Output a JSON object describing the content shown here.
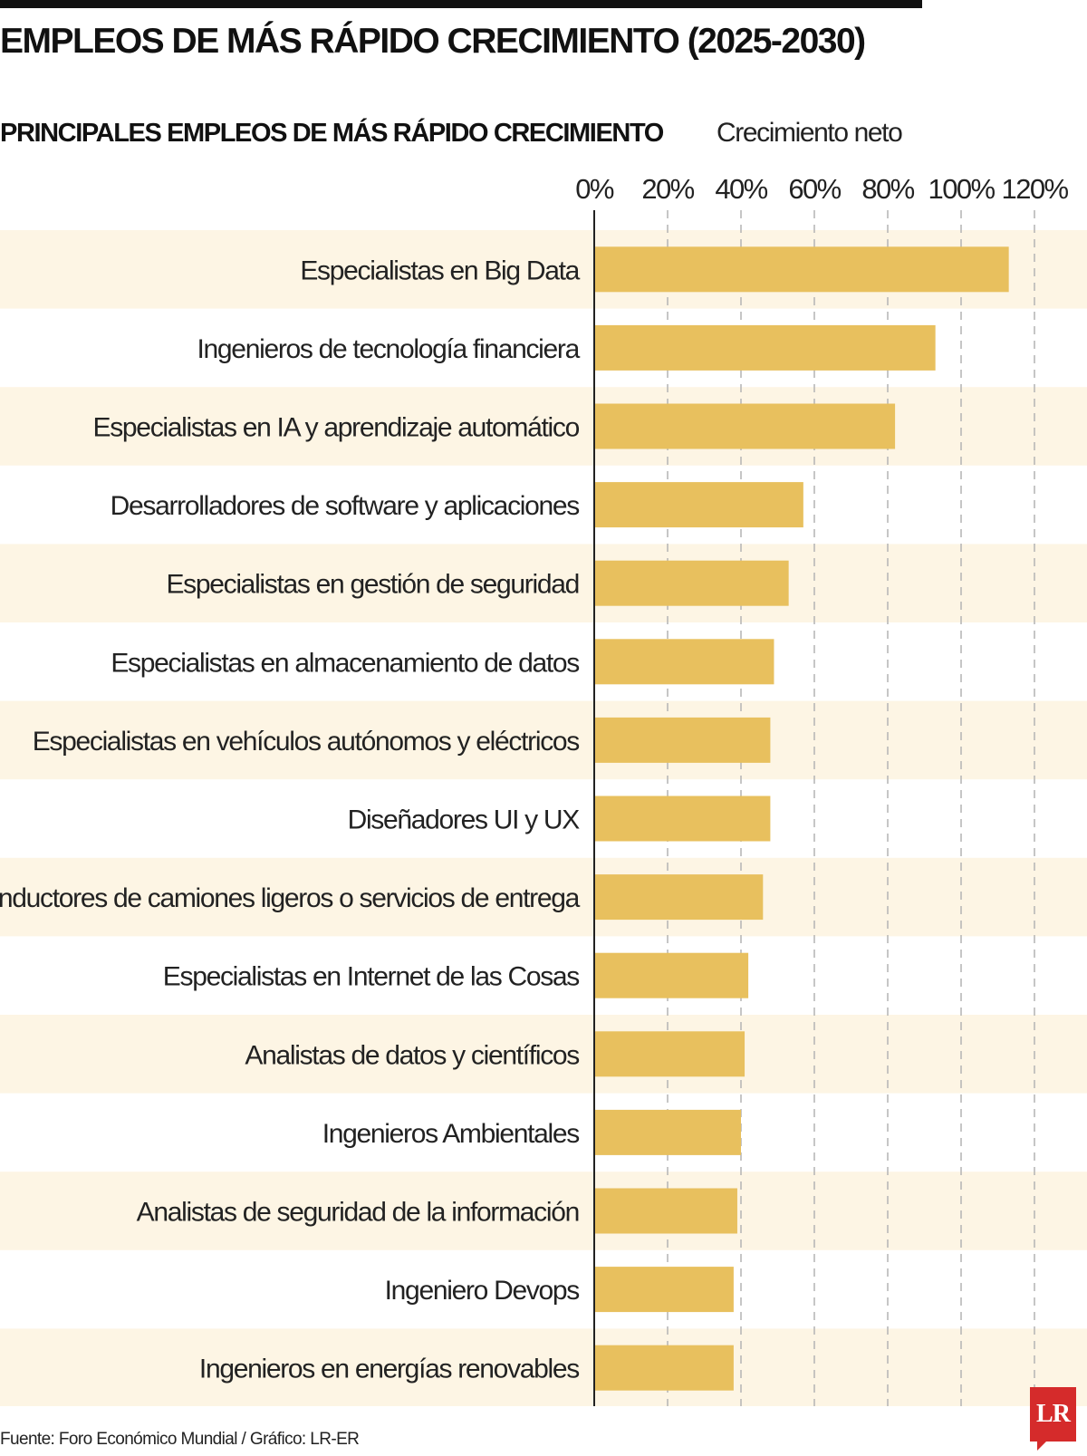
{
  "header": {
    "title": "EMPLEOS DE MÁS RÁPIDO CRECIMIENTO (2025-2030)",
    "subtitle": "PRINCIPALES EMPLEOS DE MÁS RÁPIDO CRECIMIENTO",
    "axis_title": "Crecimiento neto"
  },
  "footer": {
    "source": "Fuente: Foro Económico Mundial / Gráfico: LR-ER",
    "logo_text": "LR"
  },
  "colors": {
    "bar": "#e8c05e",
    "band": "#fdf5e4",
    "title_rule": "#111111",
    "logo": "#d52b2b"
  },
  "chart_data": {
    "type": "bar",
    "orientation": "horizontal",
    "title": "PRINCIPALES EMPLEOS DE MÁS RÁPIDO CRECIMIENTO",
    "xlabel": "Crecimiento neto",
    "ylabel": "",
    "xlim": [
      0,
      120
    ],
    "xticks": [
      0,
      20,
      40,
      60,
      80,
      100,
      120
    ],
    "xtick_labels": [
      "0%",
      "20%",
      "40%",
      "60%",
      "80%",
      "100%",
      "120%"
    ],
    "grid": "dashed vertical",
    "categories": [
      "Especialistas en Big Data",
      "Ingenieros de tecnología financiera",
      "Especialistas en IA y aprendizaje automático",
      "Desarrolladores de software y aplicaciones",
      "Especialistas en gestión de seguridad",
      "Especialistas en almacenamiento de datos",
      "Especialistas en vehículos autónomos y eléctricos",
      "Diseñadores UI y UX",
      "Conductores de camiones ligeros o servicios de entrega",
      "Especialistas en Internet de las Cosas",
      "Analistas de datos y científicos",
      "Ingenieros Ambientales",
      "Analistas de seguridad de la información",
      "Ingeniero Devops",
      "Ingenieros en energías renovables"
    ],
    "values": [
      113,
      93,
      82,
      57,
      53,
      49,
      48,
      48,
      46,
      42,
      41,
      40,
      39,
      38,
      38
    ]
  }
}
